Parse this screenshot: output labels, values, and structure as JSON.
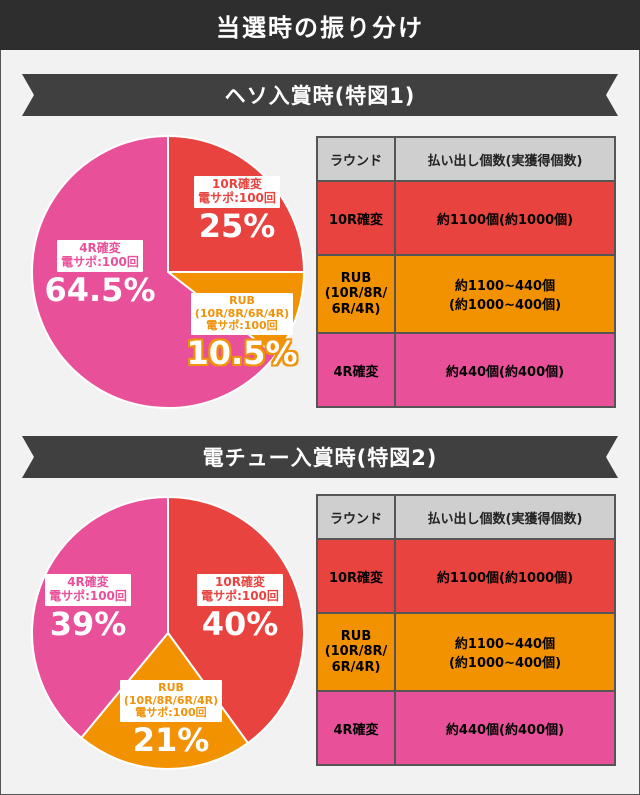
{
  "title": "当選時の振り分け",
  "sections": [
    {
      "heading": "ヘソ入賞時(特図1)",
      "slices": [
        {
          "name": "10R確変",
          "sub": [
            "10R確変",
            "電サポ:100回"
          ],
          "percent": 25,
          "label": "25%",
          "color": "#e8433f"
        },
        {
          "name": "RUB",
          "sub": [
            "RUB",
            "(10R/8R/6R/4R)",
            "電サポ:100回"
          ],
          "percent": 10.5,
          "label": "10.5%",
          "color": "#f39200"
        },
        {
          "name": "4R確変",
          "sub": [
            "4R確変",
            "電サポ:100回"
          ],
          "percent": 64.5,
          "label": "64.5%",
          "color": "#e8509a"
        }
      ],
      "table": {
        "headers": [
          "ラウンド",
          "払い出し個数(実獲得個数)"
        ],
        "rows": [
          {
            "round": "10R確変",
            "payout": [
              "約1100個(約1000個)"
            ],
            "color": "#e8433f"
          },
          {
            "round": "RUB\n(10R/8R/\n6R/4R)",
            "payout": [
              "約1100~440個",
              "(約1000~400個)"
            ],
            "color": "#f39200"
          },
          {
            "round": "4R確変",
            "payout": [
              "約440個(約400個)"
            ],
            "color": "#e8509a"
          }
        ]
      }
    },
    {
      "heading": "電チュー入賞時(特図2)",
      "slices": [
        {
          "name": "10R確変",
          "sub": [
            "10R確変",
            "電サポ:100回"
          ],
          "percent": 40,
          "label": "40%",
          "color": "#e8433f"
        },
        {
          "name": "RUB",
          "sub": [
            "RUB",
            "(10R/8R/6R/4R)",
            "電サポ:100回"
          ],
          "percent": 21,
          "label": "21%",
          "color": "#f39200"
        },
        {
          "name": "4R確変",
          "sub": [
            "4R確変",
            "電サポ:100回"
          ],
          "percent": 39,
          "label": "39%",
          "color": "#e8509a"
        }
      ],
      "table": {
        "headers": [
          "ラウンド",
          "払い出し個数(実獲得個数)"
        ],
        "rows": [
          {
            "round": "10R確変",
            "payout": [
              "約1100個(約1000個)"
            ],
            "color": "#e8433f"
          },
          {
            "round": "RUB\n(10R/8R/\n6R/4R)",
            "payout": [
              "約1100~440個",
              "(約1000~400個)"
            ],
            "color": "#f39200"
          },
          {
            "round": "4R確変",
            "payout": [
              "約440個(約400個)"
            ],
            "color": "#e8509a"
          }
        ]
      }
    }
  ]
}
